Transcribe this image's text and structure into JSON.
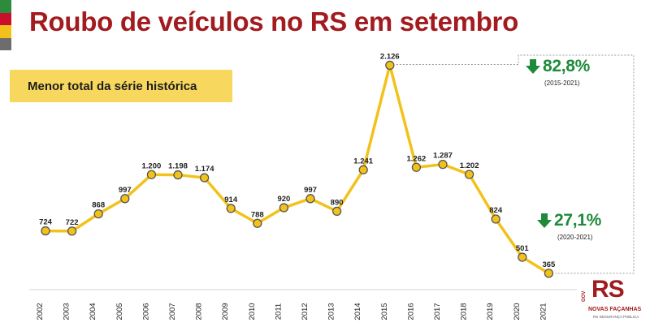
{
  "title": "Roubo de veículos no RS em setembro",
  "subtitle": "Menor total da série histórica",
  "colors": {
    "title": "#a11b1f",
    "line": "#f2c21b",
    "marker_fill": "#f2c21b",
    "marker_stroke": "#555555",
    "highlight_box": "#f7d75e",
    "down_arrow": "#1e8a3a",
    "flag": [
      "#2e8b3c",
      "#c8102e",
      "#f2c21b",
      "#2e8b3c"
    ]
  },
  "chart_data": {
    "type": "line",
    "title": "Roubo de veículos no RS em setembro",
    "subtitle": "Menor total da série histórica",
    "xlabel": "",
    "ylabel": "",
    "categories": [
      "2002",
      "2003",
      "2004",
      "2005",
      "2006",
      "2007",
      "2008",
      "2009",
      "2010",
      "2011",
      "2012",
      "2013",
      "2014",
      "2015",
      "2016",
      "2017",
      "2018",
      "2019",
      "2020",
      "2021"
    ],
    "values": [
      724,
      722,
      868,
      997,
      1200,
      1198,
      1174,
      914,
      788,
      920,
      997,
      890,
      1241,
      2126,
      1262,
      1287,
      1202,
      824,
      501,
      365
    ],
    "value_labels": [
      "724",
      "722",
      "868",
      "997",
      "1.200",
      "1.198",
      "1.174",
      "914",
      "788",
      "920",
      "997",
      "890",
      "1.241",
      "2.126",
      "1.262",
      "1.287",
      "1.202",
      "824",
      "501",
      "365"
    ],
    "ylim": [
      0,
      2300
    ],
    "grid": false,
    "legend": "none",
    "callouts": [
      {
        "value": "82,8%",
        "period": "(2015-2021)",
        "direction": "down"
      },
      {
        "value": "27,1%",
        "period": "(2020-2021)",
        "direction": "down"
      }
    ]
  },
  "logo": {
    "letters": "RS",
    "vertical_text": "GOV",
    "line1": "NOVAS FAÇANHAS",
    "line2": "RS SEGURANÇA PÚBLICA"
  }
}
